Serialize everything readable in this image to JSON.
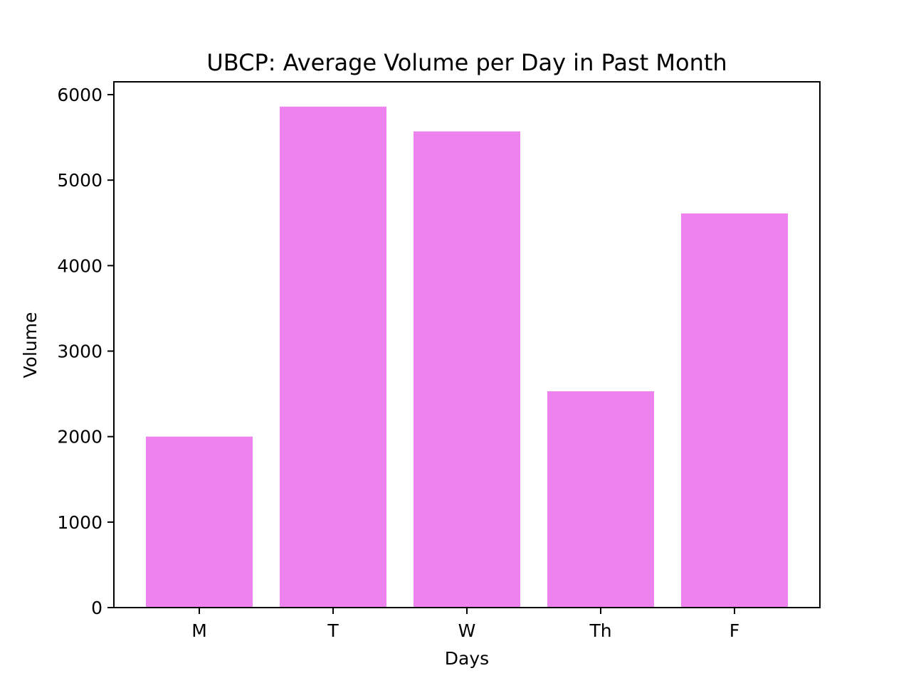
{
  "chart_data": {
    "type": "bar",
    "title": "UBCP: Average Volume per Day in Past Month",
    "xlabel": "Days",
    "ylabel": "Volume",
    "categories": [
      "M",
      "T",
      "W",
      "Th",
      "F"
    ],
    "values": [
      2000,
      5860,
      5570,
      2530,
      4610
    ],
    "ylim": [
      0,
      6150
    ],
    "yticks": [
      0,
      1000,
      2000,
      3000,
      4000,
      5000,
      6000
    ],
    "grid": false,
    "legend": "none",
    "bar_color": "#ee82ee"
  }
}
